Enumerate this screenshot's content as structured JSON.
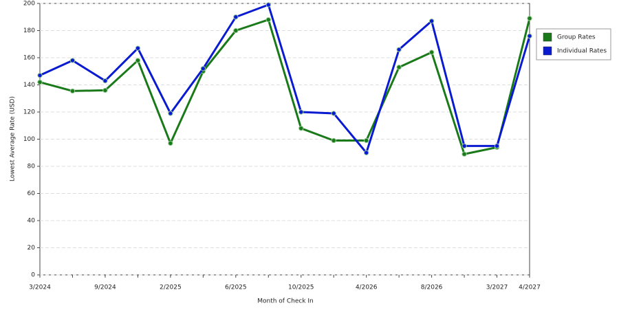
{
  "chart_data": {
    "type": "line",
    "categories": [
      "3/2024",
      null,
      "9/2024",
      null,
      "2/2025",
      null,
      "6/2025",
      null,
      "10/2025",
      null,
      "4/2026",
      null,
      "8/2026",
      null,
      "3/2027",
      "4/2027"
    ],
    "series": [
      {
        "name": "Group Rates",
        "color": "#1a7a1a",
        "values": [
          142,
          135.5,
          136,
          158,
          97,
          150,
          180,
          188,
          108,
          99,
          99,
          153,
          164,
          89,
          94,
          189
        ]
      },
      {
        "name": "Individual Rates",
        "color": "#0a1ad0",
        "values": [
          147,
          158,
          143,
          167,
          119,
          152,
          190,
          199,
          120,
          119,
          90,
          166,
          187,
          95,
          95,
          176
        ]
      }
    ],
    "ylim": [
      0,
      200
    ],
    "yticks": [
      0,
      20,
      40,
      60,
      80,
      100,
      120,
      140,
      160,
      180,
      200
    ],
    "y_label": "Lowest Average Rate (USD)",
    "x_label": "Month of Check In",
    "grid": true,
    "legend": "right"
  }
}
